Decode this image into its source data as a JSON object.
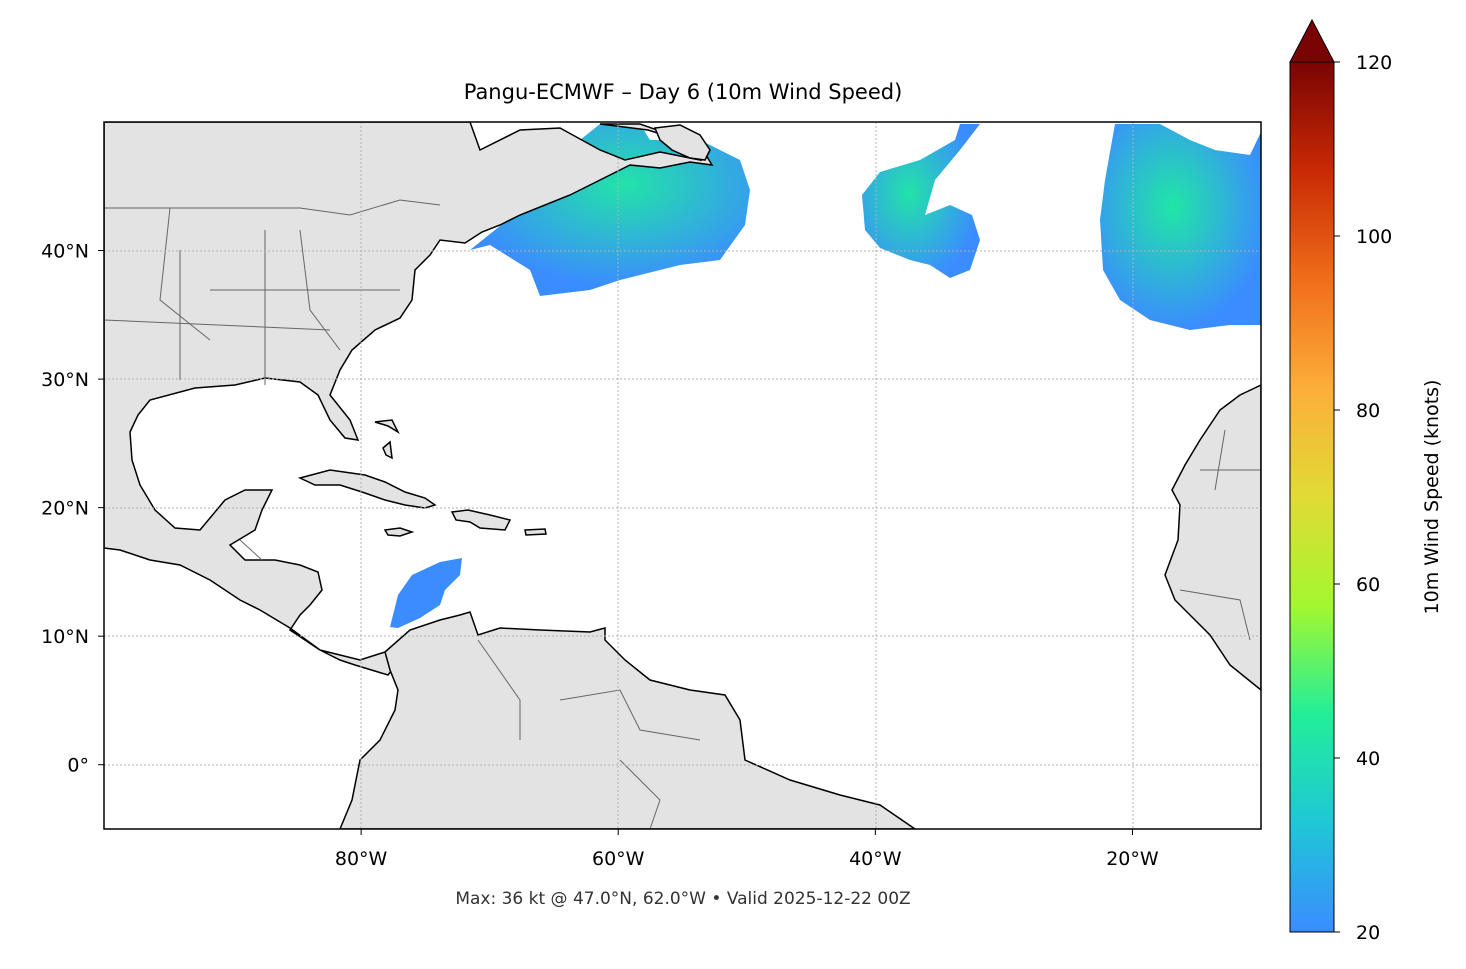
{
  "title": "Pangu-ECMWF – Day 6 (10m Wind Speed)",
  "footer": "Max: 36 kt @ 47.0°N, 62.0°W • Valid 2025-12-22 00Z",
  "map": {
    "projection": "PlateCarree",
    "lon_range": [
      -100,
      -10
    ],
    "lat_range": [
      -5,
      50
    ],
    "gridlines": "dotted",
    "lon_ticks": [
      {
        "value": -80,
        "label": "80°W"
      },
      {
        "value": -60,
        "label": "60°W"
      },
      {
        "value": -40,
        "label": "40°W"
      },
      {
        "value": -20,
        "label": "20°W"
      }
    ],
    "lat_ticks": [
      {
        "value": 40,
        "label": "40°N"
      },
      {
        "value": 30,
        "label": "30°N"
      },
      {
        "value": 20,
        "label": "20°N"
      },
      {
        "value": 10,
        "label": "10°N"
      },
      {
        "value": 0,
        "label": "0°"
      }
    ],
    "colors": {
      "land": "#e3e3e3",
      "coastline": "#000000",
      "borders": "#666666",
      "ocean": "#ffffff",
      "grid": "#b0b0b0"
    }
  },
  "colorbar": {
    "label": "10m Wind Speed (knots)",
    "min": 20,
    "max": 120,
    "extend": "max",
    "ticks": [
      {
        "value": 20,
        "label": "20"
      },
      {
        "value": 40,
        "label": "40"
      },
      {
        "value": 60,
        "label": "60"
      },
      {
        "value": 80,
        "label": "80"
      },
      {
        "value": 100,
        "label": "100"
      },
      {
        "value": 120,
        "label": "120"
      }
    ],
    "colormap": [
      "#3b8cff",
      "#1fc7d6",
      "#22ee99",
      "#a4f72f",
      "#e0db35",
      "#fcae3a",
      "#f06d1a",
      "#c82a05",
      "#7a0403"
    ]
  },
  "wind_field": {
    "units": "knots",
    "max_value": 36,
    "max_location": {
      "lat": 47.0,
      "lon": -62.0
    },
    "valid": "2025-12-22 00Z"
  }
}
